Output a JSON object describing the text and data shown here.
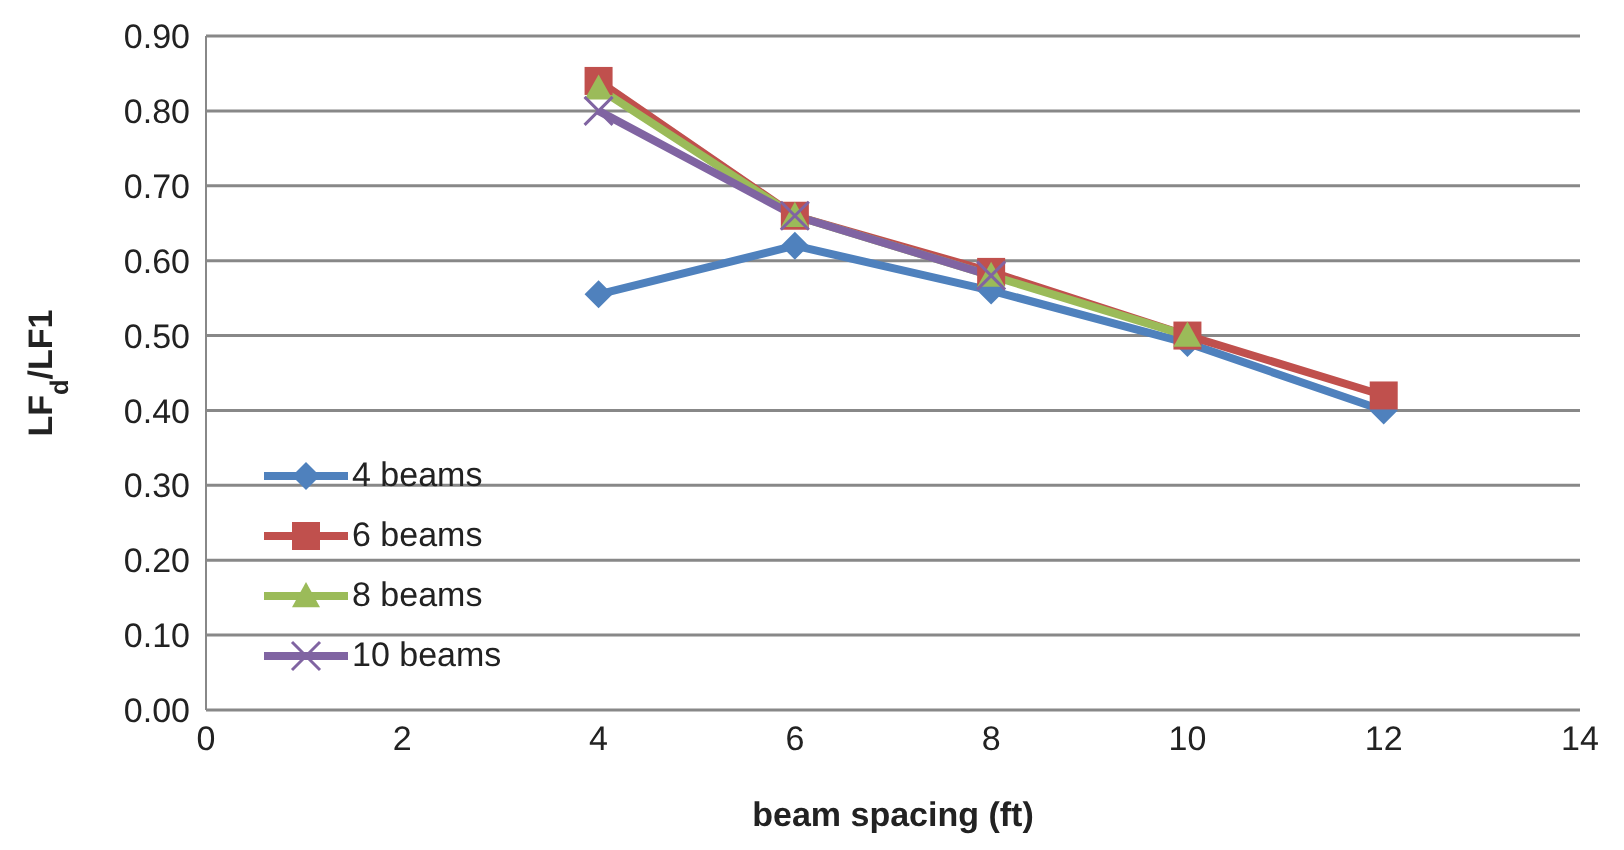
{
  "chart_data": {
    "type": "line",
    "xlabel": "beam spacing (ft)",
    "ylabel": "LF$_{d}$/LF1",
    "x": [
      4,
      6,
      8,
      10,
      12
    ],
    "series": [
      {
        "name": "4 beams",
        "color": "#4f81bd",
        "marker": "diamond",
        "values": [
          0.555,
          0.62,
          0.56,
          0.49,
          0.4
        ]
      },
      {
        "name": "6 beams",
        "color": "#c0504d",
        "marker": "square",
        "values": [
          0.84,
          0.66,
          0.585,
          0.5,
          0.42
        ]
      },
      {
        "name": "8 beams",
        "color": "#9bbb59",
        "marker": "triangle",
        "values": [
          0.83,
          0.66,
          0.58,
          0.5,
          null
        ]
      },
      {
        "name": "10 beams",
        "color": "#8064a2",
        "marker": "cross",
        "values": [
          0.8,
          0.66,
          0.58,
          null,
          null
        ]
      }
    ],
    "xlim": [
      0,
      14
    ],
    "xticks": [
      0,
      2,
      4,
      6,
      8,
      10,
      12,
      14
    ],
    "ylim": [
      0,
      0.9
    ],
    "yticks": [
      {
        "value": 0,
        "label": "0.00"
      },
      {
        "value": 0.1,
        "label": "0.10"
      },
      {
        "value": 0.2,
        "label": "0.20"
      },
      {
        "value": 0.3,
        "label": "0.30"
      },
      {
        "value": 0.4,
        "label": "0.40"
      },
      {
        "value": 0.5,
        "label": "0.50"
      },
      {
        "value": 0.6,
        "label": "0.60"
      },
      {
        "value": 0.7,
        "label": "0.70"
      },
      {
        "value": 0.8,
        "label": "0.80"
      },
      {
        "value": 0.9,
        "label": "0.90"
      }
    ],
    "grid": "y",
    "legend": "bottom left"
  }
}
